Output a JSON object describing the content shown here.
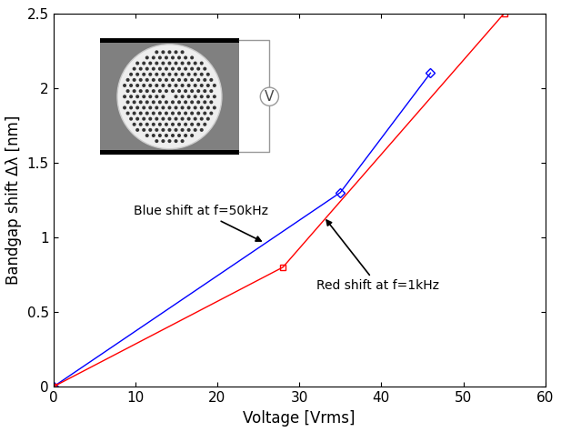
{
  "chart_data": {
    "type": "line",
    "x_label": "Voltage [Vrms]",
    "y_label": "Bandgap shift Δλ [nm]",
    "series": [
      {
        "name": "Blue shift at f=50kHz",
        "color": "#0000ff",
        "marker": "diamond",
        "line_style": "solid",
        "x": [
          0,
          35,
          46
        ],
        "values": [
          0,
          1.3,
          2.1
        ]
      },
      {
        "name": "Red shift at f=1kHz",
        "color": "#ff0000",
        "marker": "square",
        "line_style": "solid",
        "x": [
          0,
          28,
          55
        ],
        "values": [
          0,
          0.8,
          2.5
        ]
      }
    ],
    "inset_label": "V",
    "xlim": [
      0,
      60
    ],
    "xticks": [
      0,
      10,
      20,
      30,
      40,
      50,
      60
    ],
    "ylim": [
      0,
      2.5
    ],
    "yticks": [
      0,
      0.5,
      1,
      1.5,
      2,
      2.5
    ],
    "grid": false
  }
}
